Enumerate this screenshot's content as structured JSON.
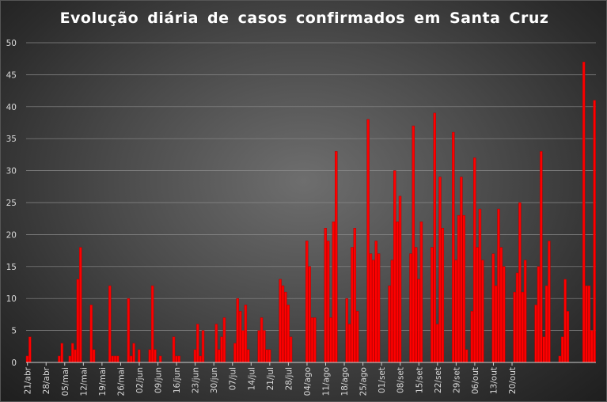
{
  "chart_data": {
    "type": "bar",
    "title": "Evolução  diária  de  casos  confirmados  em  Santa  Cruz",
    "xlabel": "",
    "ylabel": "",
    "ylim": [
      0,
      50
    ],
    "yticks": [
      0,
      5,
      10,
      15,
      20,
      25,
      30,
      35,
      40,
      45,
      50
    ],
    "grid": true,
    "legend": "none",
    "bar_color": "#ff0000",
    "start_date": "2020-04-21",
    "x_tick_labels": [
      "21/abr",
      "28/abr",
      "05/mai",
      "12/mai",
      "19/mai",
      "26/mai",
      "02/jun",
      "09/jun",
      "16/jun",
      "23/jun",
      "30/jun",
      "07/jul",
      "14/jul",
      "21/jul",
      "28/jul",
      "04/ago",
      "11/ago",
      "18/ago",
      "25/ago",
      "01/set",
      "08/set",
      "15/set",
      "22/set",
      "29/set",
      "06/out",
      "13/out",
      "20/out"
    ],
    "values": [
      1,
      4,
      0,
      0,
      0,
      0,
      0,
      0,
      0,
      0,
      0,
      0,
      1,
      3,
      0,
      0,
      1,
      3,
      2,
      13,
      18,
      0,
      0,
      0,
      9,
      2,
      0,
      0,
      0,
      0,
      0,
      12,
      1,
      1,
      1,
      0,
      0,
      0,
      10,
      1,
      3,
      0,
      2,
      0,
      0,
      0,
      2,
      12,
      2,
      0,
      1,
      0,
      0,
      0,
      0,
      4,
      1,
      1,
      0,
      0,
      0,
      0,
      0,
      2,
      6,
      1,
      5,
      0,
      0,
      0,
      0,
      6,
      2,
      4,
      7,
      0,
      0,
      0,
      3,
      10,
      8,
      5,
      9,
      2,
      0,
      0,
      0,
      5,
      7,
      5,
      2,
      2,
      0,
      0,
      0,
      13,
      12,
      11,
      9,
      4,
      0,
      0,
      0,
      0,
      0,
      19,
      15,
      7,
      7,
      0,
      0,
      0,
      21,
      19,
      7,
      22,
      33,
      0,
      0,
      0,
      10,
      6,
      18,
      21,
      8,
      0,
      0,
      0,
      38,
      17,
      16,
      19,
      17,
      0,
      0,
      0,
      12,
      16,
      30,
      22,
      26,
      0,
      0,
      0,
      17,
      37,
      18,
      13,
      22,
      0,
      0,
      0,
      18,
      39,
      6,
      29,
      21,
      0,
      0,
      0,
      36,
      16,
      23,
      29,
      23,
      2,
      0,
      8,
      32,
      18,
      24,
      16,
      0,
      0,
      0,
      17,
      12,
      24,
      18,
      15,
      0,
      0,
      0,
      11,
      14,
      25,
      11,
      16,
      0,
      0,
      0,
      9,
      15,
      33,
      4,
      12,
      19,
      0,
      0,
      0,
      1,
      4,
      13,
      8,
      0,
      0,
      0,
      0,
      0,
      47,
      12,
      12,
      5,
      41
    ]
  }
}
